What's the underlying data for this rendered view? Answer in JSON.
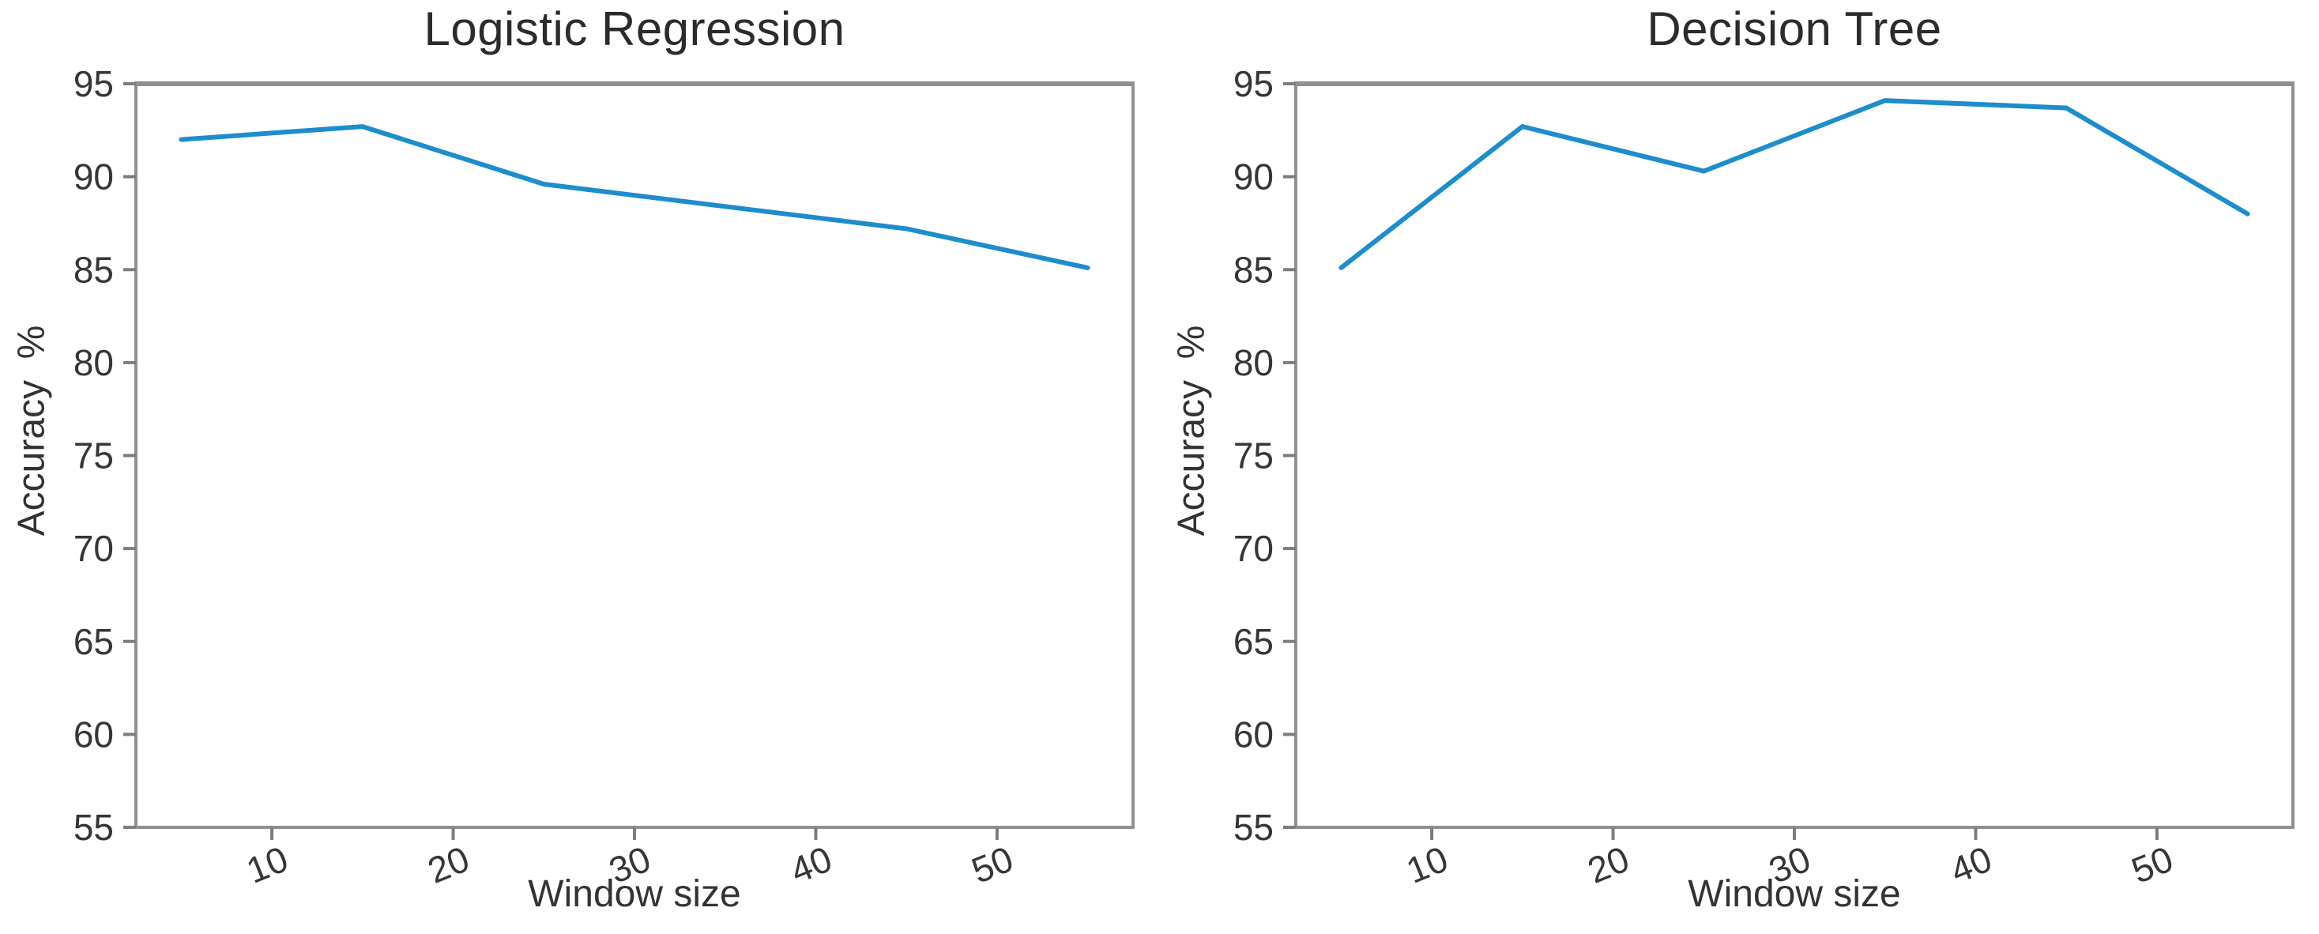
{
  "figure": {
    "background": "#ffffff"
  },
  "colors": {
    "line": "#1d8dcc",
    "spine": "#909090",
    "tick": "#7d7d7d",
    "text": "#363636",
    "title_text": "#2b2b2b"
  },
  "chart_data": [
    {
      "type": "line",
      "title": "Logistic Regression",
      "xlabel": "Window size",
      "ylabel": "Accuracy  %",
      "x": [
        5,
        15,
        25,
        35,
        45,
        55
      ],
      "values": [
        92.0,
        92.7,
        89.6,
        88.4,
        87.2,
        85.1
      ],
      "xticks": [
        10,
        20,
        30,
        40,
        50
      ],
      "yticks": [
        95,
        90,
        85,
        80,
        75,
        70,
        65,
        60,
        55
      ],
      "xlim": [
        2.5,
        57.5
      ],
      "ylim": [
        55,
        95
      ],
      "grid": false,
      "legend": "none",
      "line_color": "#1d8dcc"
    },
    {
      "type": "line",
      "title": "Decision Tree",
      "xlabel": "Window size",
      "ylabel": "Accuracy  %",
      "x": [
        5,
        15,
        25,
        35,
        45,
        55
      ],
      "values": [
        85.1,
        92.7,
        90.3,
        94.1,
        93.7,
        88.0
      ],
      "xticks": [
        10,
        20,
        30,
        40,
        50
      ],
      "yticks": [
        95,
        90,
        85,
        80,
        75,
        70,
        65,
        60,
        55
      ],
      "xlim": [
        2.5,
        57.5
      ],
      "ylim": [
        55,
        95
      ],
      "grid": false,
      "legend": "none",
      "line_color": "#1d8dcc"
    }
  ]
}
